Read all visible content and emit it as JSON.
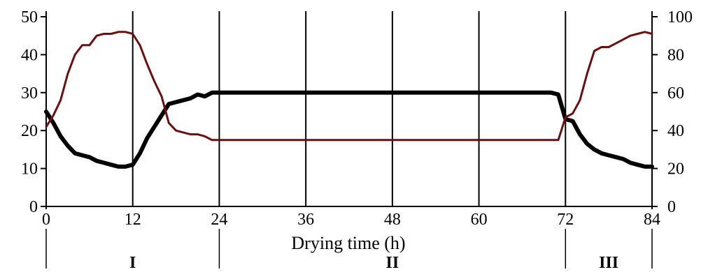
{
  "chart_data": {
    "type": "line",
    "xlabel": "Drying time (h)",
    "x_ticks": [
      "0",
      "12",
      "24",
      "36",
      "48",
      "60",
      "72",
      "84"
    ],
    "xlim": [
      0,
      84
    ],
    "y_left": {
      "lim": [
        0,
        50
      ],
      "ticks": [
        "0",
        "10",
        "20",
        "30",
        "40",
        "50"
      ]
    },
    "y_right": {
      "lim": [
        0,
        100
      ],
      "ticks": [
        "0",
        "20",
        "40",
        "60",
        "80",
        "100"
      ]
    },
    "grid": "vertical",
    "stages": [
      {
        "label": "I",
        "start": 0,
        "end": 24
      },
      {
        "label": "II",
        "start": 24,
        "end": 72
      },
      {
        "label": "III",
        "start": 72,
        "end": 84
      }
    ],
    "series": [
      {
        "axis": "left",
        "color": "#000000",
        "x": [
          0,
          1,
          2,
          3,
          4,
          5,
          6,
          7,
          8,
          9,
          10,
          11,
          12,
          13,
          14,
          15,
          16,
          17,
          18,
          19,
          20,
          21,
          22,
          23,
          24,
          36,
          48,
          60,
          70,
          71,
          72,
          73,
          74,
          75,
          76,
          77,
          78,
          79,
          80,
          81,
          82,
          83,
          84
        ],
        "y": [
          25,
          22,
          18.5,
          16,
          14,
          13.5,
          13,
          12,
          11.5,
          11,
          10.5,
          10.5,
          11,
          14,
          18,
          21,
          24,
          27,
          27.5,
          28,
          28.5,
          29.5,
          29,
          30,
          30,
          30,
          30,
          30,
          30,
          29.5,
          23,
          22.5,
          19,
          16.5,
          15,
          14,
          13.5,
          13,
          12.5,
          11.5,
          11,
          10.5,
          10.5
        ]
      },
      {
        "axis": "right",
        "color": "#6b0f0f",
        "x": [
          0,
          1,
          2,
          3,
          4,
          5,
          6,
          7,
          8,
          9,
          10,
          11,
          12,
          13,
          14,
          15,
          16,
          17,
          18,
          19,
          20,
          21,
          22,
          23,
          24,
          36,
          48,
          60,
          70,
          71,
          72,
          73,
          74,
          75,
          76,
          77,
          78,
          79,
          80,
          81,
          82,
          83,
          84
        ],
        "y": [
          42,
          48,
          56,
          70,
          80,
          85,
          85,
          90,
          91,
          91,
          92,
          92,
          91,
          85,
          75,
          66,
          58,
          44,
          40,
          39,
          38,
          38,
          37,
          35,
          35,
          35,
          35,
          35,
          35,
          35,
          47,
          49,
          56,
          70,
          82,
          84,
          84,
          86,
          88,
          90,
          91,
          92,
          91
        ]
      }
    ]
  }
}
